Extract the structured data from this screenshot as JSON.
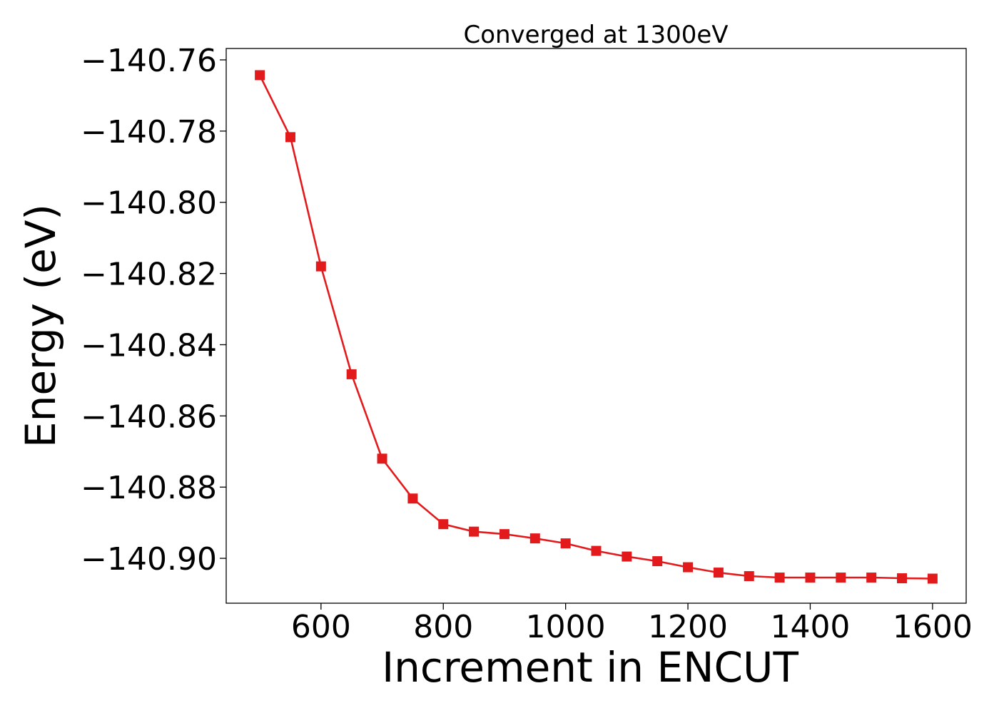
{
  "chart_data": {
    "type": "line",
    "title": "Converged at 1300eV",
    "xlabel": "Increment in ENCUT",
    "ylabel": "Energy (eV)",
    "xlim": [
      445,
      1655
    ],
    "ylim": [
      -140.9126,
      -140.7568
    ],
    "x_ticks": [
      600,
      800,
      1000,
      1200,
      1400,
      1600
    ],
    "x_tick_labels": [
      "600",
      "800",
      "1000",
      "1200",
      "1400",
      "1600"
    ],
    "y_ticks": [
      -140.76,
      -140.78,
      -140.8,
      -140.82,
      -140.84,
      -140.86,
      -140.88,
      -140.9
    ],
    "y_tick_labels": [
      "−140.76",
      "−140.78",
      "−140.80",
      "−140.82",
      "−140.84",
      "−140.86",
      "−140.88",
      "−140.90"
    ],
    "grid": false,
    "series": [
      {
        "color": "#e31a1c",
        "marker": "square",
        "x": [
          500,
          550,
          600,
          650,
          700,
          750,
          800,
          850,
          900,
          950,
          1000,
          1050,
          1100,
          1150,
          1200,
          1250,
          1300,
          1350,
          1400,
          1450,
          1500,
          1550,
          1600
        ],
        "y": [
          -140.7643,
          -140.7817,
          -140.818,
          -140.8483,
          -140.872,
          -140.8832,
          -140.8904,
          -140.8925,
          -140.8932,
          -140.8944,
          -140.8958,
          -140.8979,
          -140.8995,
          -140.9008,
          -140.9025,
          -140.904,
          -140.905,
          -140.9054,
          -140.9054,
          -140.9054,
          -140.9054,
          -140.9056,
          -140.9057
        ]
      }
    ]
  }
}
